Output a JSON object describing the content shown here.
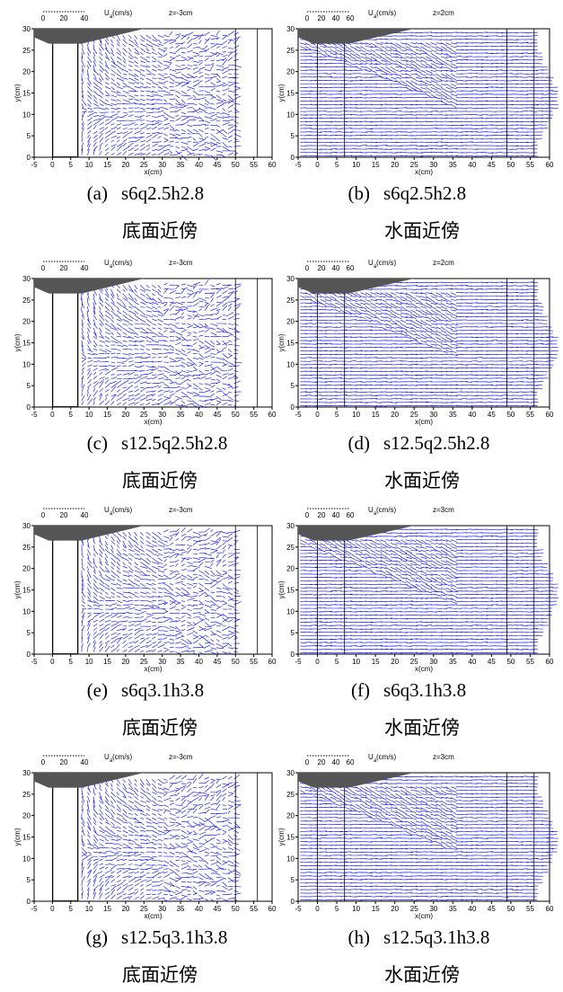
{
  "panels": [
    {
      "label": "(a)",
      "case": "s6q2.5h2.8",
      "plane": "底面近傍",
      "scale_name": "U",
      "scale_sub": "a",
      "scale_unit": " (cm/s)",
      "scale_ticks": [
        "0",
        "20",
        "40"
      ],
      "z_label": "z=-3cm",
      "x_label": "x(cm)",
      "y_label": "y(cm)",
      "xticks": [
        -5,
        0,
        5,
        10,
        15,
        20,
        25,
        30,
        35,
        40,
        45,
        50,
        55,
        60
      ],
      "yticks": [
        0,
        5,
        10,
        15,
        20,
        25,
        30
      ]
    },
    {
      "label": "(b)",
      "case": "s6q2.5h2.8",
      "plane": "水面近傍",
      "scale_name": "U",
      "scale_sub": "a",
      "scale_unit": " (cm/s)",
      "scale_ticks": [
        "0",
        "20",
        "40",
        "60"
      ],
      "z_label": "z=2cm",
      "x_label": "x(cm)",
      "y_label": "y(cm)",
      "xticks": [
        -5,
        0,
        5,
        10,
        15,
        20,
        25,
        30,
        35,
        40,
        45,
        50,
        55,
        60
      ],
      "yticks": [
        0,
        5,
        10,
        15,
        20,
        25,
        30
      ]
    },
    {
      "label": "(c)",
      "case": "s12.5q2.5h2.8",
      "plane": "底面近傍",
      "scale_name": "U",
      "scale_sub": "a",
      "scale_unit": " (cm/s)",
      "scale_ticks": [
        "0",
        "20",
        "40"
      ],
      "z_label": "z=-3cm",
      "x_label": "x(cm)",
      "y_label": "y(cm)",
      "xticks": [
        -5,
        0,
        5,
        10,
        15,
        20,
        25,
        30,
        35,
        40,
        45,
        50,
        55,
        60
      ],
      "yticks": [
        0,
        5,
        10,
        15,
        20,
        25,
        30
      ]
    },
    {
      "label": "(d)",
      "case": "s12.5q2.5h2.8",
      "plane": "水面近傍",
      "scale_name": "U",
      "scale_sub": "a",
      "scale_unit": " (cm/s)",
      "scale_ticks": [
        "0",
        "20",
        "40",
        "60"
      ],
      "z_label": "z=2cm",
      "x_label": "x(cm)",
      "y_label": "y(cm)",
      "xticks": [
        -5,
        0,
        5,
        10,
        15,
        20,
        25,
        30,
        35,
        40,
        45,
        50,
        55,
        60
      ],
      "yticks": [
        0,
        5,
        10,
        15,
        20,
        25,
        30
      ]
    },
    {
      "label": "(e)",
      "case": "s6q3.1h3.8",
      "plane": "底面近傍",
      "scale_name": "U",
      "scale_sub": "a",
      "scale_unit": " (cm/s)",
      "scale_ticks": [
        "0",
        "20",
        "40"
      ],
      "z_label": "z=-3cm",
      "x_label": "x(cm)",
      "y_label": "y(cm)",
      "xticks": [
        -5,
        0,
        5,
        10,
        15,
        20,
        25,
        30,
        35,
        40,
        45,
        50,
        55,
        60
      ],
      "yticks": [
        0,
        5,
        10,
        15,
        20,
        25,
        30
      ]
    },
    {
      "label": "(f)",
      "case": "s6q3.1h3.8",
      "plane": "水面近傍",
      "scale_name": "U",
      "scale_sub": "a",
      "scale_unit": " (cm/s)",
      "scale_ticks": [
        "0",
        "20",
        "40",
        "60"
      ],
      "z_label": "z=3cm",
      "x_label": "x(cm)",
      "y_label": "y(cm)",
      "xticks": [
        -5,
        0,
        5,
        10,
        15,
        20,
        25,
        30,
        35,
        40,
        45,
        50,
        55,
        60
      ],
      "yticks": [
        0,
        5,
        10,
        15,
        20,
        25,
        30
      ]
    },
    {
      "label": "(g)",
      "case": "s12.5q3.1h3.8",
      "plane": "底面近傍",
      "scale_name": "U",
      "scale_sub": "a",
      "scale_unit": " (cm/s)",
      "scale_ticks": [
        "0",
        "20",
        "40"
      ],
      "z_label": "z=-3cm",
      "x_label": "x(cm)",
      "y_label": "y(cm)",
      "xticks": [
        -5,
        0,
        5,
        10,
        15,
        20,
        25,
        30,
        35,
        40,
        45,
        50,
        55,
        60
      ],
      "yticks": [
        0,
        5,
        10,
        15,
        20,
        25,
        30
      ]
    },
    {
      "label": "(h)",
      "case": "s12.5q3.1h3.8",
      "plane": "水面近傍",
      "scale_name": "U",
      "scale_sub": "a",
      "scale_unit": " (cm/s)",
      "scale_ticks": [
        "0",
        "20",
        "40",
        "60"
      ],
      "z_label": "z=3cm",
      "x_label": "x(cm)",
      "y_label": "y(cm)",
      "xticks": [
        -5,
        0,
        5,
        10,
        15,
        20,
        25,
        30,
        35,
        40,
        45,
        50,
        55,
        60
      ],
      "yticks": [
        0,
        5,
        10,
        15,
        20,
        25,
        30
      ]
    }
  ]
}
